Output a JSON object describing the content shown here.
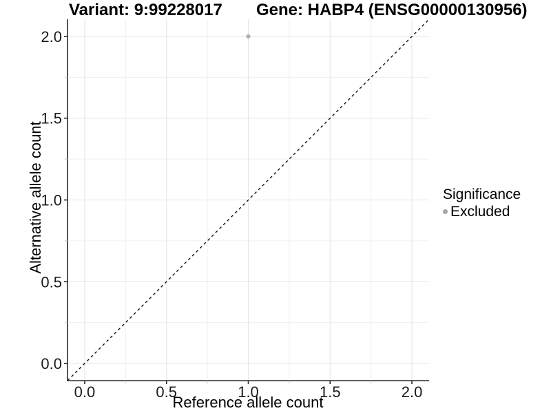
{
  "header": {
    "variant_title": "Variant: 9:99228017",
    "gene_title": "Gene: HABP4 (ENSG00000130956)"
  },
  "chart_data": {
    "type": "scatter",
    "xlabel": "Reference allele count",
    "ylabel": "Alternative allele count",
    "xlim": [
      -0.105,
      2.105
    ],
    "ylim": [
      -0.105,
      2.105
    ],
    "x_ticks": [
      0.0,
      0.5,
      1.0,
      1.5,
      2.0
    ],
    "y_ticks": [
      0.0,
      0.5,
      1.0,
      1.5,
      2.0
    ],
    "x_tick_labels": [
      "0.0",
      "0.5",
      "1.0",
      "1.5",
      "2.0"
    ],
    "y_tick_labels": [
      "0.0",
      "0.5",
      "1.0",
      "1.5",
      "2.0"
    ],
    "minor_ticks": [
      0.25,
      0.75,
      1.25,
      1.75
    ],
    "grid": "major+minor",
    "legend_position": "right",
    "points": [
      {
        "x": 1.0,
        "y": 2.0,
        "series": "Excluded"
      }
    ],
    "reference_line": {
      "type": "abline",
      "slope": 1,
      "intercept": 0,
      "style": "dashed"
    }
  },
  "legend": {
    "title": "Significance",
    "items": [
      {
        "label": "Excluded",
        "color": "#a6a6a6",
        "marker": "circle"
      }
    ]
  },
  "colors": {
    "background": "#ffffff",
    "axis_line": "#2b2b2b",
    "tick_label": "#1a1a1a",
    "grid_major": "#e4e4e4",
    "grid_minor": "#f0f0f0",
    "minor_tick": "#cfcfcf",
    "point": "#b0b0b0",
    "reference_line": "#111111"
  }
}
